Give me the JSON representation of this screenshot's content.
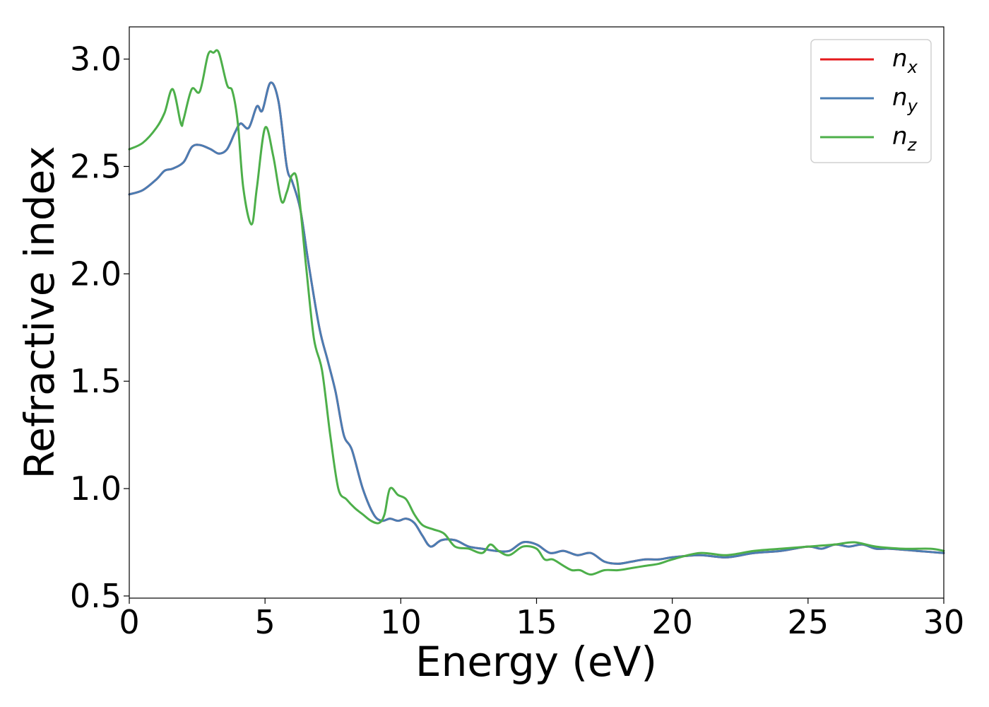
{
  "chart_data": {
    "type": "line",
    "xlabel": "Energy (eV)",
    "ylabel": "Refractive index",
    "xlim": [
      0,
      30
    ],
    "ylim": [
      0.49,
      3.15
    ],
    "xticks": [
      0,
      5,
      10,
      15,
      20,
      25,
      30
    ],
    "xtick_labels": [
      "0",
      "5",
      "10",
      "15",
      "20",
      "25",
      "30"
    ],
    "yticks": [
      0.5,
      1.0,
      1.5,
      2.0,
      2.5,
      3.0
    ],
    "ytick_labels": [
      "0.5",
      "1.0",
      "1.5",
      "2.0",
      "2.5",
      "3.0"
    ],
    "grid": false,
    "legend_position": "top-right",
    "series": [
      {
        "name": "n",
        "subscript": "x",
        "color": "#e41a1c",
        "x": [
          0,
          0.5,
          1.0,
          1.3,
          1.6,
          2.0,
          2.3,
          2.6,
          3.0,
          3.3,
          3.6,
          3.9,
          4.1,
          4.4,
          4.7,
          4.9,
          5.2,
          5.5,
          5.8,
          6.0,
          6.3,
          6.6,
          7.0,
          7.3,
          7.6,
          7.9,
          8.2,
          8.6,
          9.0,
          9.3,
          9.6,
          9.9,
          10.2,
          10.5,
          10.8,
          11.1,
          11.5,
          12.0,
          12.5,
          13.0,
          13.5,
          14.0,
          14.5,
          15.0,
          15.5,
          16.0,
          16.5,
          17.0,
          17.5,
          18.0,
          18.5,
          19.0,
          19.5,
          20.0,
          21.0,
          22.0,
          23.0,
          24.0,
          25.0,
          25.5,
          26.0,
          26.5,
          27.0,
          27.5,
          28.0,
          29.0,
          30.0
        ],
        "values": [
          2.37,
          2.39,
          2.44,
          2.48,
          2.49,
          2.52,
          2.59,
          2.6,
          2.58,
          2.56,
          2.58,
          2.66,
          2.7,
          2.68,
          2.78,
          2.76,
          2.89,
          2.8,
          2.5,
          2.43,
          2.3,
          2.05,
          1.75,
          1.6,
          1.45,
          1.25,
          1.18,
          1.0,
          0.88,
          0.85,
          0.86,
          0.85,
          0.86,
          0.84,
          0.78,
          0.73,
          0.76,
          0.76,
          0.73,
          0.72,
          0.71,
          0.71,
          0.75,
          0.74,
          0.7,
          0.71,
          0.69,
          0.7,
          0.66,
          0.65,
          0.66,
          0.67,
          0.67,
          0.68,
          0.69,
          0.68,
          0.7,
          0.71,
          0.73,
          0.72,
          0.74,
          0.73,
          0.74,
          0.72,
          0.72,
          0.71,
          0.7
        ]
      },
      {
        "name": "n",
        "subscript": "y",
        "color": "#4a7db3",
        "x": [
          0,
          0.5,
          1.0,
          1.3,
          1.6,
          2.0,
          2.3,
          2.6,
          3.0,
          3.3,
          3.6,
          3.9,
          4.1,
          4.4,
          4.7,
          4.9,
          5.2,
          5.5,
          5.8,
          6.0,
          6.3,
          6.6,
          7.0,
          7.3,
          7.6,
          7.9,
          8.2,
          8.6,
          9.0,
          9.3,
          9.6,
          9.9,
          10.2,
          10.5,
          10.8,
          11.1,
          11.5,
          12.0,
          12.5,
          13.0,
          13.5,
          14.0,
          14.5,
          15.0,
          15.5,
          16.0,
          16.5,
          17.0,
          17.5,
          18.0,
          18.5,
          19.0,
          19.5,
          20.0,
          21.0,
          22.0,
          23.0,
          24.0,
          25.0,
          25.5,
          26.0,
          26.5,
          27.0,
          27.5,
          28.0,
          29.0,
          30.0
        ],
        "values": [
          2.37,
          2.39,
          2.44,
          2.48,
          2.49,
          2.52,
          2.59,
          2.6,
          2.58,
          2.56,
          2.58,
          2.66,
          2.7,
          2.68,
          2.78,
          2.76,
          2.89,
          2.8,
          2.5,
          2.43,
          2.3,
          2.05,
          1.75,
          1.6,
          1.45,
          1.25,
          1.18,
          1.0,
          0.88,
          0.85,
          0.86,
          0.85,
          0.86,
          0.84,
          0.78,
          0.73,
          0.76,
          0.76,
          0.73,
          0.72,
          0.71,
          0.71,
          0.75,
          0.74,
          0.7,
          0.71,
          0.69,
          0.7,
          0.66,
          0.65,
          0.66,
          0.67,
          0.67,
          0.68,
          0.69,
          0.68,
          0.7,
          0.71,
          0.73,
          0.72,
          0.74,
          0.73,
          0.74,
          0.72,
          0.72,
          0.71,
          0.7
        ]
      },
      {
        "name": "n",
        "subscript": "z",
        "color": "#4daf4a",
        "x": [
          0,
          0.5,
          1.0,
          1.3,
          1.6,
          1.9,
          2.0,
          2.3,
          2.6,
          2.9,
          3.1,
          3.3,
          3.6,
          3.8,
          4.0,
          4.2,
          4.5,
          4.7,
          5.0,
          5.3,
          5.6,
          5.8,
          6.0,
          6.2,
          6.5,
          6.8,
          7.1,
          7.4,
          7.7,
          8.0,
          8.3,
          8.6,
          8.9,
          9.2,
          9.4,
          9.6,
          9.9,
          10.2,
          10.5,
          10.8,
          11.2,
          11.6,
          12.0,
          12.5,
          13.0,
          13.3,
          13.6,
          14.0,
          14.5,
          15.0,
          15.3,
          15.6,
          16.0,
          16.3,
          16.6,
          17.0,
          17.5,
          18.0,
          18.5,
          19.0,
          19.5,
          20.0,
          21.0,
          22.0,
          23.0,
          24.0,
          25.0,
          26.0,
          26.7,
          27.5,
          28.5,
          29.5,
          30.0
        ],
        "values": [
          2.58,
          2.61,
          2.68,
          2.75,
          2.86,
          2.7,
          2.72,
          2.86,
          2.85,
          3.02,
          3.03,
          3.03,
          2.88,
          2.85,
          2.7,
          2.4,
          2.23,
          2.4,
          2.68,
          2.55,
          2.34,
          2.38,
          2.46,
          2.42,
          2.05,
          1.7,
          1.55,
          1.25,
          1.0,
          0.95,
          0.91,
          0.88,
          0.85,
          0.84,
          0.88,
          1.0,
          0.97,
          0.95,
          0.88,
          0.83,
          0.81,
          0.79,
          0.73,
          0.72,
          0.7,
          0.74,
          0.71,
          0.69,
          0.73,
          0.72,
          0.67,
          0.67,
          0.64,
          0.62,
          0.62,
          0.6,
          0.62,
          0.62,
          0.63,
          0.64,
          0.65,
          0.67,
          0.7,
          0.69,
          0.71,
          0.72,
          0.73,
          0.74,
          0.75,
          0.73,
          0.72,
          0.72,
          0.71
        ]
      }
    ]
  }
}
